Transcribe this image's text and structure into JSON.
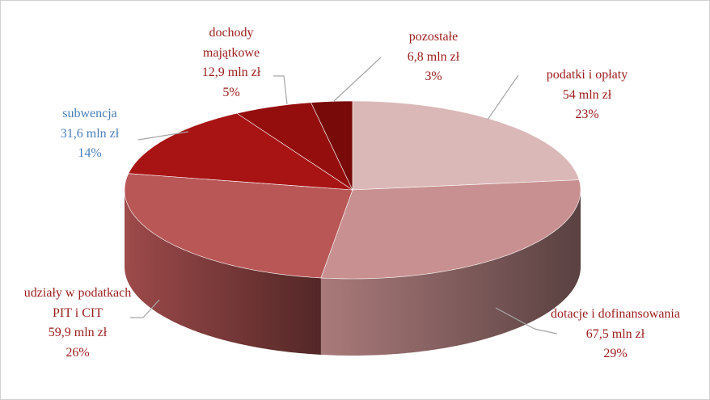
{
  "chart_data": {
    "type": "pie3d",
    "categories": [
      "podatki i opłaty",
      "dotacje i dofinansowania",
      "udziały w podatkach PIT i CIT",
      "subwencja",
      "dochody majątkowe",
      "pozostałe"
    ],
    "values": [
      54,
      67.5,
      59.9,
      31.6,
      12.9,
      6.8
    ],
    "value_labels": [
      "54 mln zł",
      "67,5 mln zł",
      "59,9 mln zł",
      "31,6 mln zł",
      "12,9 mln zł",
      "6,8 mln zł"
    ],
    "percents": [
      23,
      29,
      26,
      14,
      5,
      3
    ],
    "percent_labels": [
      "23%",
      "29%",
      "26%",
      "14%",
      "5%",
      "3%"
    ],
    "colors": [
      "#dbb8b8",
      "#c89090",
      "#b95757",
      "#a81414",
      "#940e0e",
      "#780a0a"
    ],
    "label_colors": [
      "#9b1c1c",
      "#9b1c1c",
      "#9b1c1c",
      "#4a7ebb",
      "#9b1c1c",
      "#9b1c1c"
    ]
  }
}
